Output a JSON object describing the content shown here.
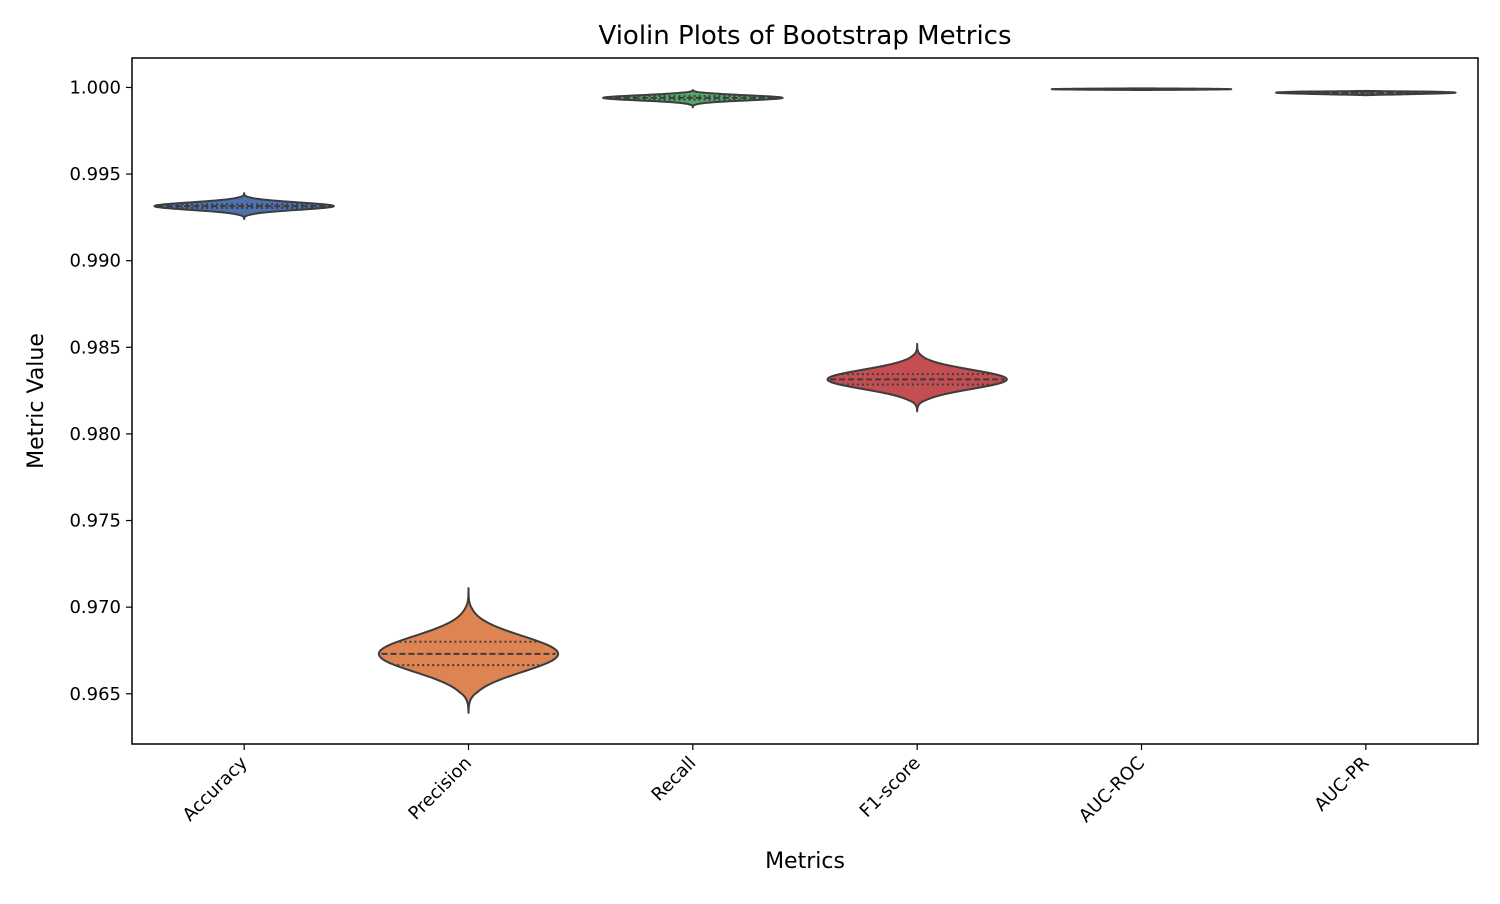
{
  "chart_data": {
    "type": "violin",
    "title": "Violin Plots of Bootstrap Metrics",
    "xlabel": "Metrics",
    "ylabel": "Metric Value",
    "categories": [
      "Accuracy",
      "Precision",
      "Recall",
      "F1-score",
      "AUC-ROC",
      "AUC-PR"
    ],
    "ylim": [
      0.9621,
      1.0017
    ],
    "yticks": [
      "0.965",
      "0.970",
      "0.975",
      "0.980",
      "0.985",
      "0.990",
      "0.995",
      "1.000"
    ],
    "grid": false,
    "violins": [
      {
        "category": "Accuracy",
        "color": "#4c72b0",
        "min": 0.9924,
        "max": 0.9939,
        "q1": 0.99305,
        "median": 0.99315,
        "q3": 0.99325
      },
      {
        "category": "Precision",
        "color": "#dd8452",
        "min": 0.9639,
        "max": 0.9711,
        "q1": 0.96665,
        "median": 0.9673,
        "q3": 0.968
      },
      {
        "category": "Recall",
        "color": "#55a868",
        "min": 0.99885,
        "max": 0.99985,
        "q1": 0.9993,
        "median": 0.9994,
        "q3": 0.9995
      },
      {
        "category": "F1-score",
        "color": "#c44e52",
        "min": 0.9813,
        "max": 0.9852,
        "q1": 0.98285,
        "median": 0.98315,
        "q3": 0.98345
      },
      {
        "category": "AUC-ROC",
        "color": "#8172b3",
        "min": 0.99985,
        "max": 0.99995,
        "q1": 0.99988,
        "median": 0.9999,
        "q3": 0.99992
      },
      {
        "category": "AUC-PR",
        "color": "#937860",
        "min": 0.99955,
        "max": 0.9998,
        "q1": 0.99965,
        "median": 0.9997,
        "q3": 0.99975
      }
    ]
  }
}
